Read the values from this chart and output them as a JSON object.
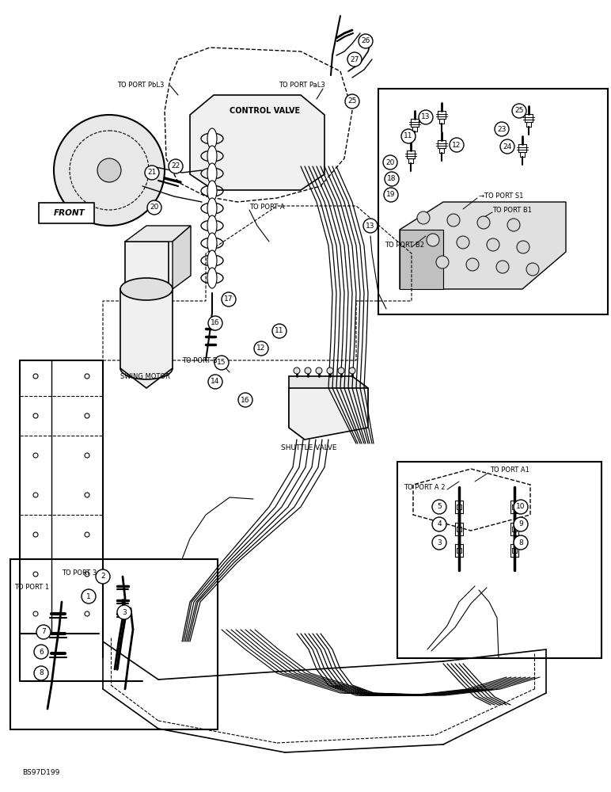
{
  "bg_color": "#ffffff",
  "image_code": "BS97D199",
  "lc": "#000000",
  "labels": {
    "control_valve": "CONTROL VALVE",
    "swing_motor": "SWING MOTOR",
    "shuttle_valve": "SHUTTLE VALVE",
    "front": "FRONT",
    "to_port_pbl3": "TO PORT PbL3",
    "to_port_pal3": "TO PORT PaL3",
    "to_port_a": "TO PORT A",
    "to_port_b": "TO PORT B",
    "to_port_s1": "→TO PORT S1",
    "to_port_b1": "TO PORT B1",
    "to_port_b2": "TO PORT B2",
    "to_port_a1": "TO PORT A1",
    "to_port_a2": "TO PORT A 2",
    "to_port_1": "TO PORT 1",
    "to_port_3": "TO PORT 3"
  }
}
